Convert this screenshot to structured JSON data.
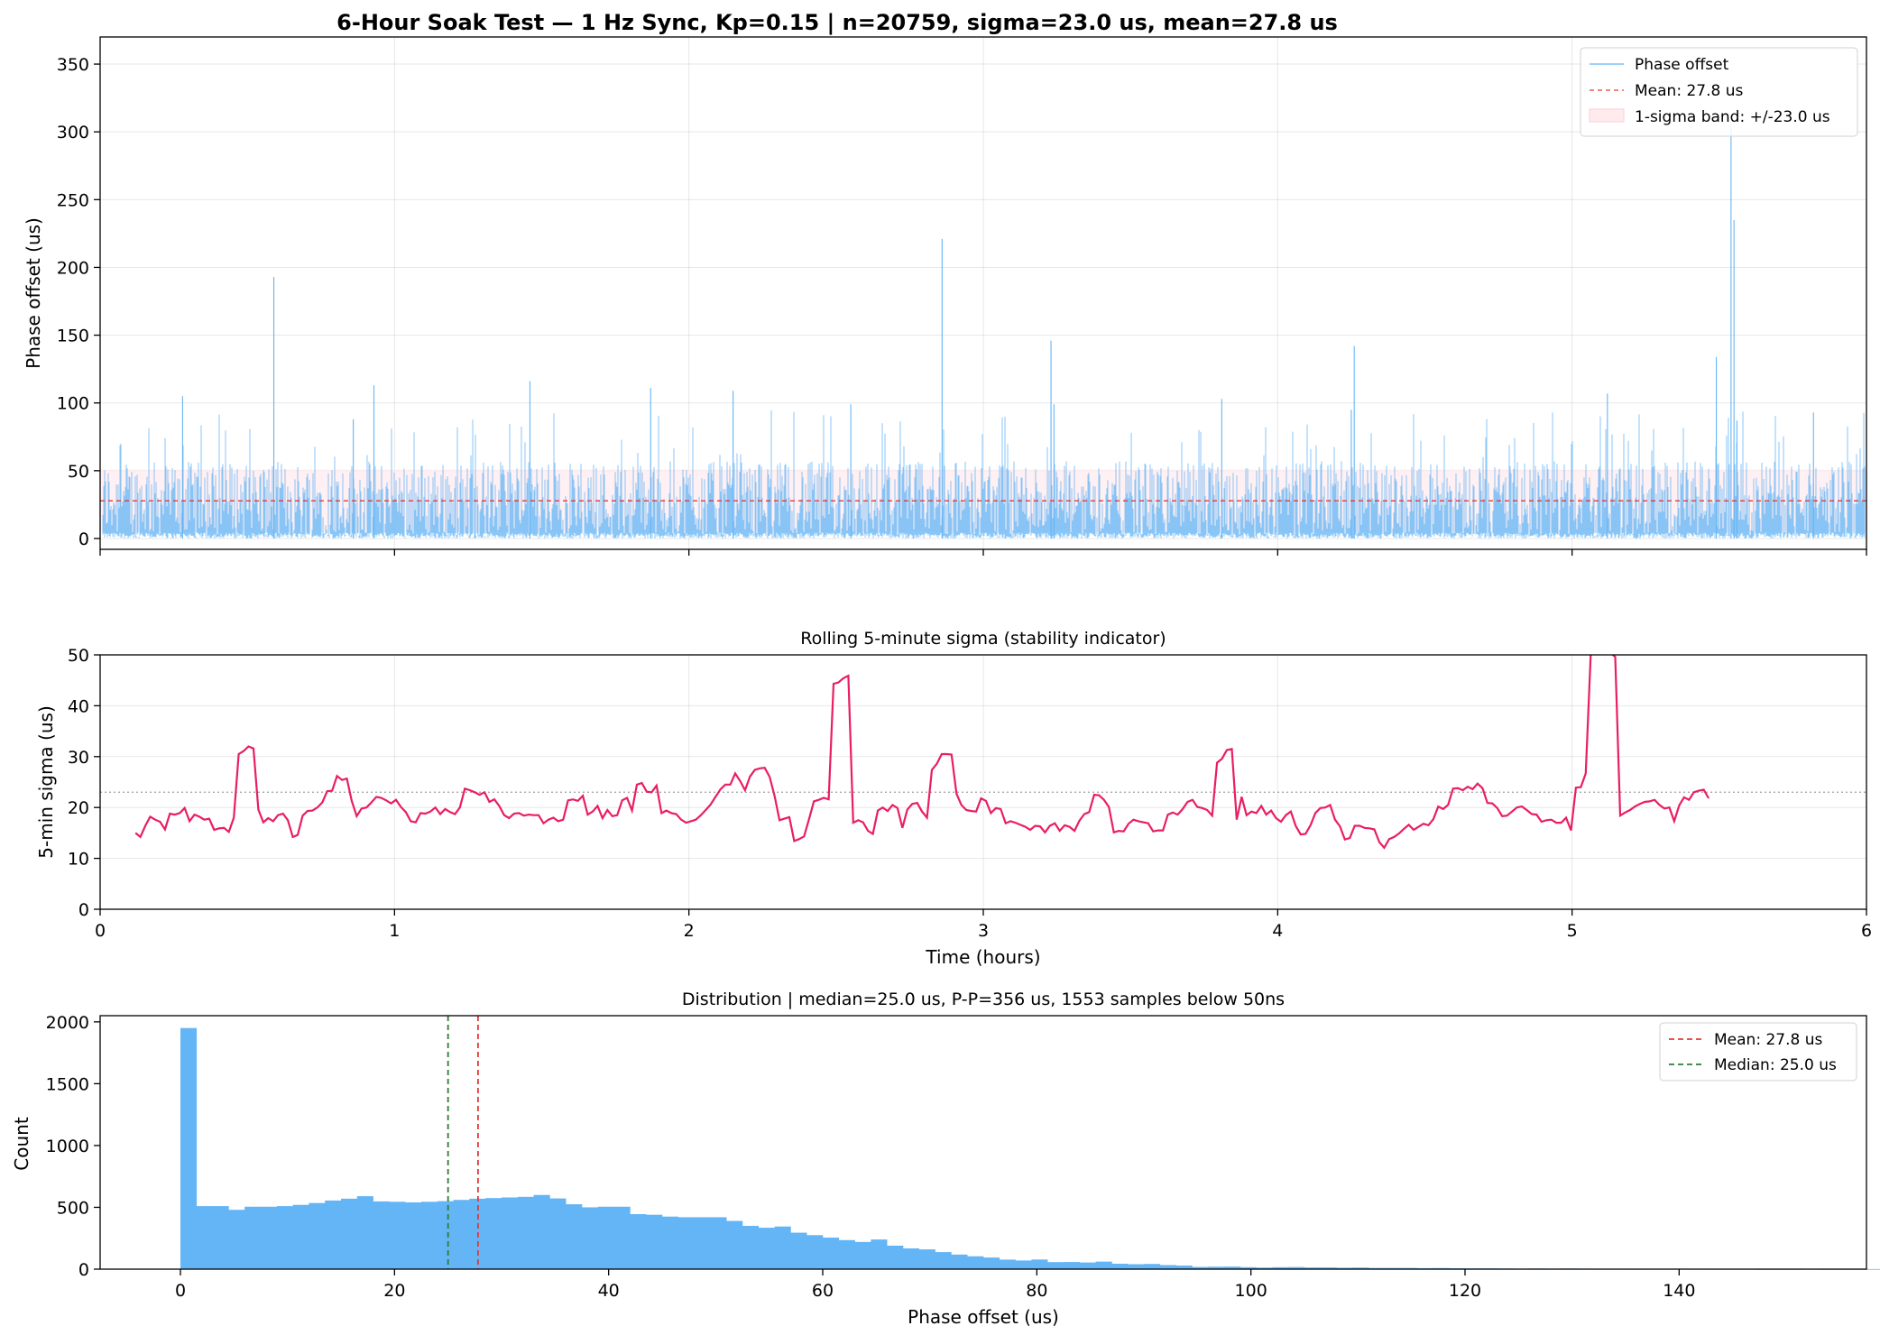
{
  "chart_data": [
    {
      "type": "line",
      "title": "6-Hour Soak Test — 1 Hz Sync, Kp=0.15  |  n=20759, sigma=23.0 us, mean=27.8 us",
      "xlabel": "",
      "ylabel": "Phase offset (us)",
      "xlim": [
        0,
        6
      ],
      "ylim": [
        -8,
        370
      ],
      "yticks": [
        0,
        50,
        100,
        150,
        200,
        250,
        300,
        350
      ],
      "grid": true,
      "legend_position": "top-right",
      "series": [
        {
          "name": "Phase offset",
          "color": "#64b5f6",
          "noise_model": {
            "mean": 27.8,
            "sigma": 23.0,
            "max": 60,
            "n": 20759
          },
          "spikes": [
            {
              "x": 0.28,
              "y": 105
            },
            {
              "x": 0.59,
              "y": 193
            },
            {
              "x": 0.86,
              "y": 88
            },
            {
              "x": 0.93,
              "y": 113
            },
            {
              "x": 1.46,
              "y": 116
            },
            {
              "x": 1.87,
              "y": 111
            },
            {
              "x": 2.15,
              "y": 109
            },
            {
              "x": 2.55,
              "y": 99
            },
            {
              "x": 2.86,
              "y": 221
            },
            {
              "x": 3.23,
              "y": 146
            },
            {
              "x": 3.24,
              "y": 99
            },
            {
              "x": 3.81,
              "y": 103
            },
            {
              "x": 4.25,
              "y": 95
            },
            {
              "x": 4.26,
              "y": 142
            },
            {
              "x": 5.12,
              "y": 107
            },
            {
              "x": 5.49,
              "y": 134
            },
            {
              "x": 5.54,
              "y": 305
            },
            {
              "x": 5.55,
              "y": 235
            },
            {
              "x": 5.56,
              "y": 87
            },
            {
              "x": 5.82,
              "y": 93
            }
          ]
        },
        {
          "name": "Mean: 27.8 us",
          "color": "#e53935",
          "value": 27.8,
          "style": "dashed"
        },
        {
          "name": "1-sigma band: +/-23.0 us",
          "color": "#ffcdd2",
          "from": 4.8,
          "to": 50.8
        }
      ]
    },
    {
      "type": "line",
      "title": "Rolling 5-minute sigma (stability indicator)",
      "xlabel": "Time (hours)",
      "ylabel": "5-min sigma (us)",
      "xlim": [
        0,
        6
      ],
      "ylim": [
        0,
        50
      ],
      "xticks": [
        0,
        1,
        2,
        3,
        4,
        5,
        6
      ],
      "yticks": [
        0,
        10,
        20,
        30,
        40,
        50
      ],
      "grid": true,
      "reference_line": {
        "value": 23.0,
        "style": "dotted",
        "color": "#9e9e9e"
      },
      "series": [
        {
          "name": "",
          "color": "#e91e63",
          "x_start": 0.12,
          "x_step": 0.0167,
          "values": [
            15.0,
            14.2,
            16.4,
            18.2,
            17.6,
            17.2,
            15.7,
            18.8,
            18.6,
            18.9,
            19.9,
            17.3,
            18.6,
            18.2,
            17.6,
            17.8,
            15.6,
            15.9,
            16.0,
            15.2,
            18.0,
            30.5,
            31.1,
            32.0,
            31.6,
            19.6,
            17.1,
            17.9,
            17.3,
            18.5,
            18.8,
            17.5,
            14.2,
            14.6,
            18.4,
            19.3,
            19.4,
            20.0,
            21.0,
            23.2,
            23.3,
            26.2,
            25.4,
            25.7,
            21.3,
            18.3,
            19.8,
            20.0,
            21.0,
            22.1,
            21.9,
            21.4,
            20.8,
            21.5,
            20.1,
            19.1,
            17.3,
            17.1,
            18.9,
            18.8,
            19.2,
            20.0,
            18.7,
            19.7,
            19.1,
            18.7,
            20.0,
            23.7,
            23.4,
            23.0,
            22.5,
            23.0,
            21.1,
            21.6,
            20.3,
            18.5,
            17.9,
            18.8,
            18.9,
            18.4,
            18.6,
            18.5,
            18.5,
            16.9,
            17.6,
            18.0,
            17.3,
            17.6,
            21.4,
            21.6,
            21.3,
            22.3,
            18.6,
            19.2,
            20.3,
            17.9,
            19.5,
            18.3,
            18.5,
            21.4,
            21.9,
            19.4,
            24.5,
            24.8,
            23.1,
            23.0,
            24.3,
            18.9,
            19.4,
            18.9,
            18.7,
            17.6,
            17.0,
            17.3,
            17.6,
            18.5,
            19.5,
            20.6,
            22.1,
            23.6,
            24.5,
            24.5,
            26.7,
            25.2,
            23.4,
            26.1,
            27.4,
            27.7,
            27.8,
            26.0,
            22.3,
            17.5,
            17.8,
            18.1,
            13.4,
            13.8,
            14.3,
            17.7,
            21.2,
            21.5,
            21.9,
            21.6,
            44.3,
            44.6,
            45.4,
            45.9,
            17.0,
            17.5,
            17.1,
            15.4,
            14.8,
            19.4,
            20.0,
            19.3,
            20.5,
            19.9,
            16.0,
            19.6,
            20.7,
            20.9,
            19.2,
            18.0,
            27.4,
            28.6,
            30.5,
            30.5,
            30.4,
            22.7,
            20.5,
            19.5,
            19.3,
            19.2,
            21.8,
            21.3,
            18.9,
            19.9,
            19.7,
            16.9,
            17.3,
            17.0,
            16.6,
            16.2,
            15.6,
            16.4,
            16.3,
            15.1,
            16.4,
            16.9,
            15.4,
            16.5,
            16.2,
            15.4,
            17.4,
            18.7,
            19.1,
            22.5,
            22.4,
            21.5,
            20.1,
            15.1,
            15.4,
            15.3,
            16.8,
            17.6,
            17.3,
            17.1,
            16.9,
            15.3,
            15.5,
            15.5,
            18.6,
            19.0,
            18.6,
            19.7,
            21.1,
            21.5,
            20.1,
            19.9,
            19.5,
            18.4,
            28.8,
            29.6,
            31.3,
            31.5,
            17.6,
            22.1,
            18.5,
            19.2,
            18.9,
            20.3,
            18.6,
            19.4,
            17.9,
            17.2,
            18.5,
            19.2,
            16.4,
            14.7,
            14.8,
            16.5,
            18.9,
            19.9,
            20.0,
            20.5,
            17.6,
            16.3,
            13.7,
            14.0,
            16.4,
            16.4,
            16.0,
            15.9,
            15.7,
            13.2,
            12.1,
            13.8,
            14.2,
            14.9,
            15.8,
            16.6,
            15.6,
            16.2,
            16.8,
            16.5,
            17.7,
            20.2,
            19.7,
            20.5,
            23.7,
            23.8,
            23.4,
            24.1,
            23.6,
            24.7,
            23.8,
            20.9,
            20.8,
            19.9,
            18.3,
            18.4,
            19.2,
            20.0,
            20.2,
            19.5,
            18.7,
            18.6,
            17.2,
            17.5,
            17.6,
            17.0,
            17.0,
            18.0,
            15.5,
            23.9,
            24.0,
            26.7,
            49.9,
            51.0,
            51.5,
            52.0,
            50.4,
            49.6,
            18.4,
            19.0,
            19.5,
            20.2,
            20.7,
            21.1,
            21.2,
            21.5,
            20.5,
            19.8,
            20.0,
            17.3,
            20.4,
            22.0,
            21.5,
            23.0,
            23.3,
            23.5,
            21.8
          ]
        }
      ]
    },
    {
      "type": "bar",
      "title": "Distribution  |  median=25.0 us, P-P=356 us, 1553 samples below 50ns",
      "xlabel": "Phase offset (us)",
      "ylabel": "Count",
      "xlim": [
        -7.5,
        157.5
      ],
      "ylim": [
        0,
        2050
      ],
      "xticks": [
        0,
        20,
        40,
        60,
        80,
        100,
        120,
        140
      ],
      "yticks": [
        0,
        500,
        1000,
        1500,
        2000
      ],
      "bin_start": 0,
      "bin_width": 1.5,
      "grid": false,
      "legend_position": "top-right",
      "series": [
        {
          "name": "",
          "color": "#64b5f6",
          "values": [
            1950,
            510,
            510,
            480,
            505,
            505,
            510,
            520,
            535,
            555,
            570,
            590,
            548,
            545,
            540,
            545,
            550,
            560,
            570,
            575,
            580,
            585,
            600,
            572,
            525,
            500,
            505,
            505,
            445,
            440,
            425,
            420,
            420,
            420,
            390,
            350,
            335,
            345,
            295,
            275,
            255,
            235,
            220,
            240,
            190,
            168,
            160,
            138,
            118,
            104,
            94,
            77,
            70,
            78,
            57,
            58,
            54,
            61,
            44,
            40,
            42,
            33,
            29,
            18,
            20,
            21,
            16,
            13,
            16,
            17,
            14,
            14,
            12,
            13,
            10,
            10,
            10,
            8,
            9,
            7,
            6,
            6,
            5,
            4,
            5,
            4,
            5,
            4,
            3,
            3,
            2,
            3,
            3,
            4,
            3,
            2,
            2,
            2,
            1,
            1,
            1,
            2,
            1,
            1,
            1,
            1,
            1,
            1,
            1,
            0
          ]
        },
        {
          "name": "Mean: 27.8 us",
          "color": "#e53935",
          "value": 27.8,
          "style": "dashed"
        },
        {
          "name": "Median: 25.0 us",
          "color": "#2e7d32",
          "value": 25.0,
          "style": "dashed"
        }
      ]
    }
  ]
}
